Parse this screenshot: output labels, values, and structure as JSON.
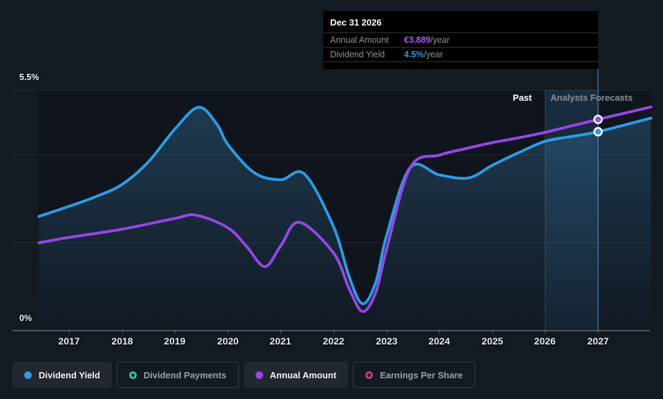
{
  "colors": {
    "background": "#141a22",
    "dividend_yield_blue": "#2e9be6",
    "annual_amount_purple": "#9448e8",
    "dividend_payments_teal": "#2fbcab",
    "earnings_per_share_pink": "#c43a84",
    "tooltip_background": "#000000",
    "gridline": "rgba(255,255,255,0.08)"
  },
  "tooltip": {
    "date": "Dec 31 2026",
    "rows": [
      {
        "label": "Annual Amount",
        "value": "€3.889",
        "suffix": "/year"
      },
      {
        "label": "Dividend Yield",
        "value": "4.5%",
        "suffix": "/year"
      }
    ]
  },
  "labels": {
    "past": "Past",
    "forecast": "Analysts Forecasts",
    "y_max": "5.5%",
    "y_min": "0%"
  },
  "legend": [
    {
      "label": "Dividend Yield",
      "style": "filled",
      "color": "#2e9be6",
      "active": true
    },
    {
      "label": "Dividend Payments",
      "style": "hollow",
      "color": "#2fbcab",
      "active": false
    },
    {
      "label": "Annual Amount",
      "style": "filled",
      "color": "#9448e8",
      "active": true
    },
    {
      "label": "Earnings Per Share",
      "style": "hollow",
      "color": "#c43a84",
      "active": false
    }
  ],
  "chart_data": {
    "type": "line",
    "title": "Dividend history and forecast",
    "x_ticks": [
      2017,
      2018,
      2019,
      2020,
      2021,
      2022,
      2023,
      2024,
      2025,
      2026,
      2027
    ],
    "x_range": [
      2016.43,
      2028.0
    ],
    "yield_axis": {
      "min": 0,
      "max": 5.5,
      "unit": "%",
      "gridlines": [
        0,
        2,
        4,
        5.5
      ],
      "labeled": [
        0,
        5.5
      ]
    },
    "amount_axis": {
      "min": 0,
      "unit": "EUR/year"
    },
    "past_until": 2026,
    "hover_year": 2027,
    "hovered_point_label": "Dec 31 2026",
    "series": [
      {
        "name": "Dividend Yield",
        "color": "#2e9be6",
        "unit": "%",
        "axis": "yield",
        "area_fill": true,
        "points": [
          [
            2016.43,
            2.6
          ],
          [
            2017.0,
            2.83
          ],
          [
            2017.5,
            3.05
          ],
          [
            2018.0,
            3.33
          ],
          [
            2018.5,
            3.85
          ],
          [
            2019.0,
            4.6
          ],
          [
            2019.45,
            5.1
          ],
          [
            2019.8,
            4.7
          ],
          [
            2020.0,
            4.25
          ],
          [
            2020.5,
            3.6
          ],
          [
            2021.0,
            3.44
          ],
          [
            2021.45,
            3.57
          ],
          [
            2022.0,
            2.36
          ],
          [
            2022.3,
            1.2
          ],
          [
            2022.55,
            0.6
          ],
          [
            2022.8,
            1.1
          ],
          [
            2023.0,
            2.15
          ],
          [
            2023.45,
            3.72
          ],
          [
            2024.0,
            3.55
          ],
          [
            2024.55,
            3.48
          ],
          [
            2025.0,
            3.77
          ],
          [
            2025.5,
            4.06
          ],
          [
            2026.0,
            4.32
          ],
          [
            2026.5,
            4.43
          ],
          [
            2027.0,
            4.54
          ],
          [
            2028.0,
            4.85
          ]
        ]
      },
      {
        "name": "Annual Amount",
        "color": "#9448e8",
        "unit": "EUR",
        "axis": "amount",
        "area_fill": false,
        "points": [
          [
            2016.43,
            1.61
          ],
          [
            2017.0,
            1.71
          ],
          [
            2018.0,
            1.86
          ],
          [
            2019.0,
            2.06
          ],
          [
            2019.4,
            2.12
          ],
          [
            2020.0,
            1.89
          ],
          [
            2020.35,
            1.55
          ],
          [
            2020.7,
            1.17
          ],
          [
            2021.0,
            1.55
          ],
          [
            2021.35,
            1.99
          ],
          [
            2022.0,
            1.42
          ],
          [
            2022.3,
            0.75
          ],
          [
            2022.55,
            0.34
          ],
          [
            2022.8,
            0.7
          ],
          [
            2023.0,
            1.48
          ],
          [
            2023.45,
            3.0
          ],
          [
            2024.0,
            3.23
          ],
          [
            2024.5,
            3.35
          ],
          [
            2025.0,
            3.46
          ],
          [
            2025.5,
            3.55
          ],
          [
            2026.0,
            3.65
          ],
          [
            2026.5,
            3.77
          ],
          [
            2027.0,
            3.889
          ],
          [
            2028.0,
            4.12
          ]
        ]
      }
    ],
    "markers": [
      {
        "series": "Annual Amount",
        "year": 2027,
        "value": 3.889
      },
      {
        "series": "Dividend Yield",
        "year": 2027,
        "value": 4.54
      }
    ]
  }
}
